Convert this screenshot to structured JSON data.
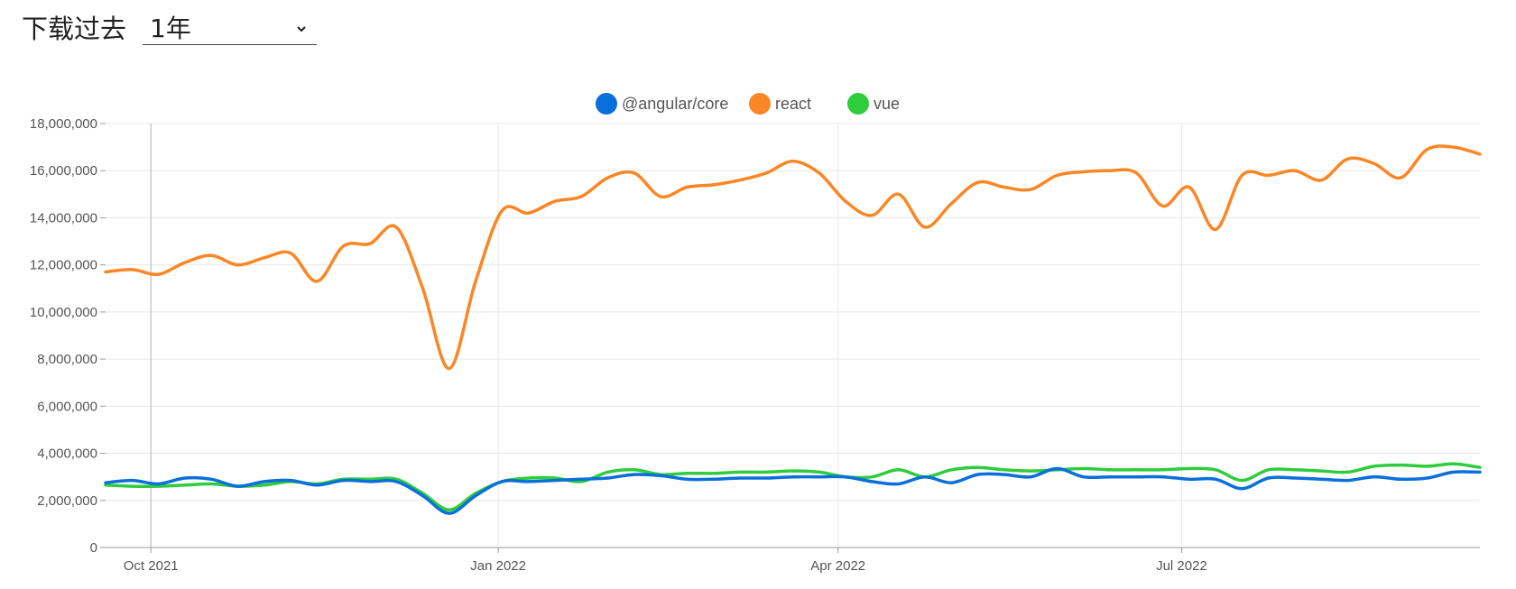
{
  "header": {
    "title": "下载过去",
    "period_value": "1年"
  },
  "colors": {
    "angular": "#0a6fdb",
    "react": "#fb8624",
    "vue": "#2fcc3d",
    "grid": "#e8e8e8",
    "axis": "#999999"
  },
  "chart_data": {
    "type": "line",
    "title": "",
    "xlabel": "",
    "ylabel": "",
    "ylim": [
      0,
      18000000
    ],
    "y_ticks": [
      "18,000,000",
      "16,000,000",
      "14,000,000",
      "12,000,000",
      "10,000,000",
      "8,000,000",
      "6,000,000",
      "4,000,000",
      "2,000,000",
      "0"
    ],
    "x_ticks": [
      "Oct 2021",
      "Jan 2022",
      "Apr 2022",
      "Jul 2022"
    ],
    "grid": true,
    "legend": "top-center",
    "x": [
      "2021-09-19",
      "2021-09-26",
      "2021-10-03",
      "2021-10-10",
      "2021-10-17",
      "2021-10-24",
      "2021-10-31",
      "2021-11-07",
      "2021-11-14",
      "2021-11-21",
      "2021-11-28",
      "2021-12-05",
      "2021-12-12",
      "2021-12-19",
      "2021-12-26",
      "2022-01-02",
      "2022-01-09",
      "2022-01-16",
      "2022-01-23",
      "2022-01-30",
      "2022-02-06",
      "2022-02-13",
      "2022-02-20",
      "2022-02-27",
      "2022-03-06",
      "2022-03-13",
      "2022-03-20",
      "2022-03-27",
      "2022-04-03",
      "2022-04-10",
      "2022-04-17",
      "2022-04-24",
      "2022-05-01",
      "2022-05-08",
      "2022-05-15",
      "2022-05-22",
      "2022-05-29",
      "2022-06-05",
      "2022-06-12",
      "2022-06-19",
      "2022-06-26",
      "2022-07-03",
      "2022-07-10",
      "2022-07-17",
      "2022-07-24",
      "2022-07-31",
      "2022-08-07",
      "2022-08-14",
      "2022-08-21",
      "2022-08-28",
      "2022-09-04",
      "2022-09-11",
      "2022-09-18"
    ],
    "series": [
      {
        "name": "@angular/core",
        "color": "#0a6fdb",
        "values": [
          2750000,
          2850000,
          2700000,
          2950000,
          2900000,
          2600000,
          2800000,
          2850000,
          2650000,
          2850000,
          2800000,
          2800000,
          2200000,
          1450000,
          2200000,
          2800000,
          2800000,
          2850000,
          2900000,
          2950000,
          3100000,
          3050000,
          2900000,
          2900000,
          2950000,
          2950000,
          3000000,
          3000000,
          3000000,
          2800000,
          2700000,
          3000000,
          2750000,
          3100000,
          3100000,
          3000000,
          3350000,
          3000000,
          3000000,
          3000000,
          3000000,
          2900000,
          2900000,
          2500000,
          2950000,
          2950000,
          2900000,
          2850000,
          3000000,
          2900000,
          2950000,
          3200000,
          3200000
        ]
      },
      {
        "name": "react",
        "color": "#fb8624",
        "values": [
          11700000,
          11800000,
          11600000,
          12100000,
          12400000,
          12000000,
          12300000,
          12500000,
          11300000,
          12800000,
          12900000,
          13600000,
          11000000,
          7600000,
          11300000,
          14300000,
          14200000,
          14700000,
          14900000,
          15700000,
          15900000,
          14900000,
          15300000,
          15400000,
          15600000,
          15900000,
          16400000,
          15900000,
          14700000,
          14100000,
          15000000,
          13600000,
          14600000,
          15500000,
          15300000,
          15200000,
          15800000,
          15950000,
          16000000,
          15900000,
          14500000,
          15300000,
          13500000,
          15800000,
          15800000,
          16000000,
          15600000,
          16500000,
          16300000,
          15700000,
          16900000,
          17000000,
          16700000
        ]
      },
      {
        "name": "vue",
        "color": "#2fcc3d",
        "values": [
          2650000,
          2600000,
          2600000,
          2650000,
          2700000,
          2600000,
          2650000,
          2800000,
          2700000,
          2900000,
          2900000,
          2900000,
          2300000,
          1600000,
          2300000,
          2800000,
          2950000,
          2950000,
          2800000,
          3200000,
          3300000,
          3100000,
          3150000,
          3150000,
          3200000,
          3200000,
          3250000,
          3200000,
          3000000,
          3000000,
          3300000,
          3000000,
          3300000,
          3400000,
          3300000,
          3250000,
          3300000,
          3350000,
          3300000,
          3300000,
          3300000,
          3350000,
          3300000,
          2850000,
          3300000,
          3300000,
          3250000,
          3200000,
          3450000,
          3500000,
          3450000,
          3550000,
          3400000
        ]
      }
    ]
  }
}
